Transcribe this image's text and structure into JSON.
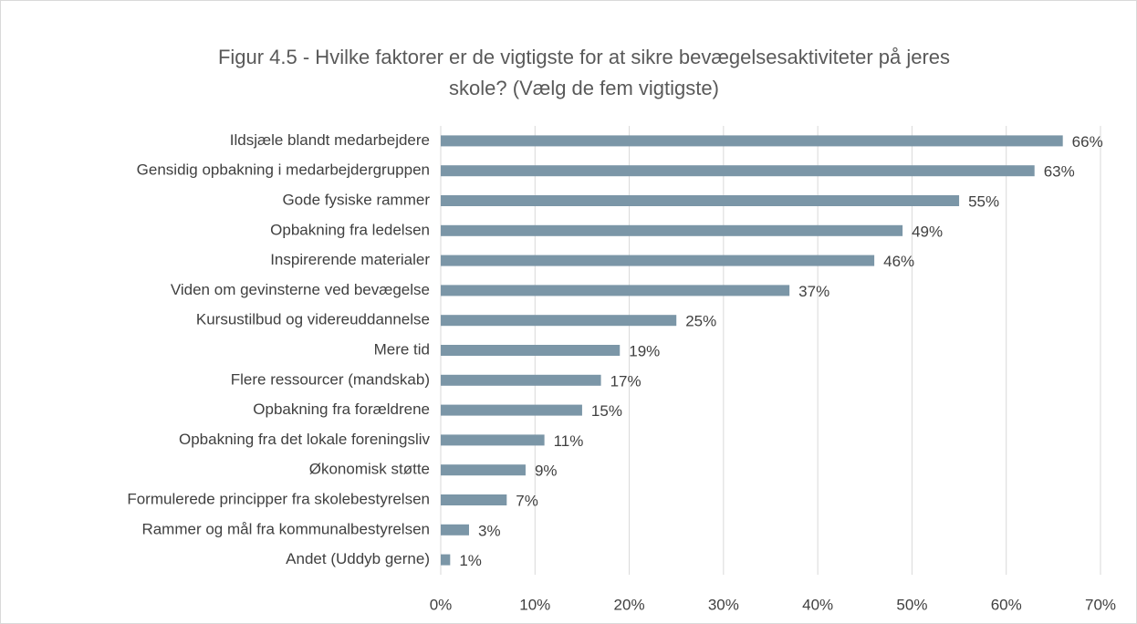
{
  "chart_data": {
    "type": "bar",
    "orientation": "horizontal",
    "title": [
      "Figur 4.5 - Hvilke faktorer er de vigtigste for at sikre bevægelsesaktiviteter på jeres",
      "skole? (Vælg de fem vigtigste)"
    ],
    "categories": [
      "Ildsjæle blandt medarbejdere",
      "Gensidig opbakning i medarbejdergruppen",
      "Gode fysiske rammer",
      "Opbakning fra ledelsen",
      "Inspirerende materialer",
      "Viden om gevinsterne ved bevægelse",
      "Kursustilbud og videreuddannelse",
      "Mere tid",
      "Flere ressourcer (mandskab)",
      "Opbakning fra forældrene",
      "Opbakning fra det lokale foreningsliv",
      "Økonomisk støtte",
      "Formulerede principper fra skolebestyrelsen",
      "Rammer og mål fra kommunalbestyrelsen",
      "Andet (Uddyb gerne)"
    ],
    "values": [
      66,
      63,
      55,
      49,
      46,
      37,
      25,
      19,
      17,
      15,
      11,
      9,
      7,
      3,
      1
    ],
    "value_labels": [
      "66%",
      "63%",
      "55%",
      "49%",
      "46%",
      "37%",
      "25%",
      "19%",
      "17%",
      "15%",
      "11%",
      "9%",
      "7%",
      "3%",
      "1%"
    ],
    "color": "#7b96a7",
    "xlim": [
      0,
      70
    ],
    "xticks": [
      {
        "value": 0,
        "label": "0%"
      },
      {
        "value": 10,
        "label": "10%"
      },
      {
        "value": 20,
        "label": "20%"
      },
      {
        "value": 30,
        "label": "30%"
      },
      {
        "value": 40,
        "label": "40%"
      },
      {
        "value": 50,
        "label": "50%"
      },
      {
        "value": 60,
        "label": "60%"
      },
      {
        "value": 70,
        "label": "70%"
      }
    ],
    "grid": true
  }
}
